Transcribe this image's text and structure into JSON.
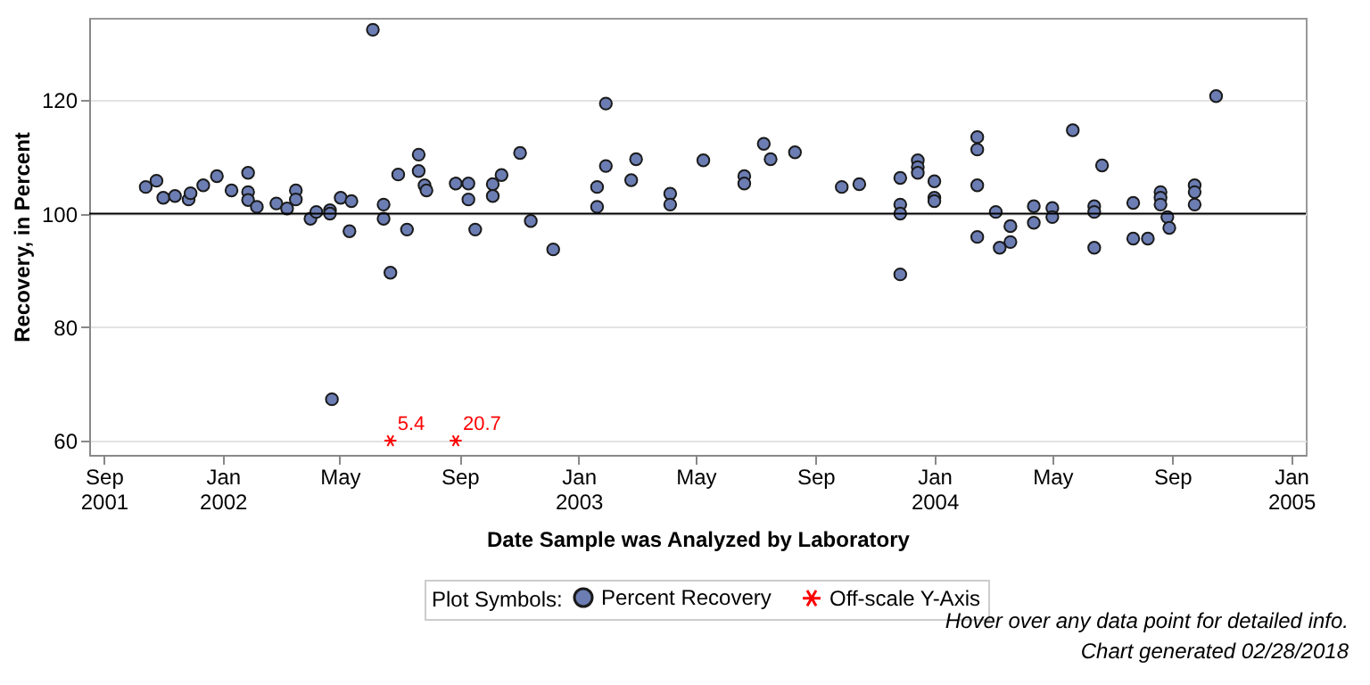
{
  "chart_data": {
    "type": "scatter",
    "xlabel": "Date Sample was Analyzed by Laboratory",
    "ylabel": "Recovery, in Percent",
    "legend_title": "Plot Symbols:",
    "legend": "bottom",
    "grid": "y",
    "xlim": [
      "2001-08-17",
      "2005-01-16"
    ],
    "ylim": [
      57.5,
      134.5
    ],
    "yticks": [
      60,
      80,
      100,
      120
    ],
    "xticks": [
      {
        "value": "2001-09-01",
        "label": "Sep 2001"
      },
      {
        "value": "2002-01-01",
        "label": "Jan 2002"
      },
      {
        "value": "2002-05-01",
        "label": "May"
      },
      {
        "value": "2002-09-01",
        "label": "Sep"
      },
      {
        "value": "2003-01-01",
        "label": "Jan 2003"
      },
      {
        "value": "2003-05-01",
        "label": "May"
      },
      {
        "value": "2003-09-01",
        "label": "Sep"
      },
      {
        "value": "2004-01-01",
        "label": "Jan 2004"
      },
      {
        "value": "2004-05-01",
        "label": "May"
      },
      {
        "value": "2004-09-01",
        "label": "Sep"
      },
      {
        "value": "2005-01-01",
        "label": "Jan 2005"
      }
    ],
    "ref_lines": [
      {
        "axis": "y",
        "value": 100,
        "color": "#000000"
      }
    ],
    "annotations": [
      "Hover over any data point for detailed info.",
      "Chart generated 02/28/2018",
      {
        "text": "5.4",
        "x": "2002-06-22",
        "y": 60
      },
      {
        "text": "20.7",
        "x": "2002-08-28",
        "y": 60
      }
    ],
    "series": [
      {
        "name": "Percent Recovery",
        "color": "#6b7db3",
        "marker": "circle",
        "x": [
          "2001-10-14",
          "2001-10-25",
          "2001-11-01",
          "2001-11-13",
          "2001-11-27",
          "2001-11-29",
          "2001-12-12",
          "2001-12-26",
          "2002-01-10",
          "2002-01-27",
          "2002-01-27",
          "2002-01-27",
          "2002-02-05",
          "2002-02-25",
          "2002-03-08",
          "2002-03-17",
          "2002-03-17",
          "2002-04-01",
          "2002-04-07",
          "2002-04-21",
          "2002-04-21",
          "2002-04-23",
          "2002-05-02",
          "2002-05-11",
          "2002-05-13",
          "2002-06-04",
          "2002-06-15",
          "2002-06-15",
          "2002-06-22",
          "2002-06-30",
          "2002-07-09",
          "2002-07-21",
          "2002-07-21",
          "2002-07-27",
          "2002-07-29",
          "2002-08-28",
          "2002-09-10",
          "2002-09-10",
          "2002-09-17",
          "2002-10-05",
          "2002-10-05",
          "2002-10-14",
          "2002-11-02",
          "2002-11-13",
          "2002-12-06",
          "2003-01-20",
          "2003-01-20",
          "2003-01-29",
          "2003-01-29",
          "2003-02-24",
          "2003-03-01",
          "2003-04-05",
          "2003-04-05",
          "2003-05-09",
          "2003-06-20",
          "2003-06-20",
          "2003-07-10",
          "2003-07-17",
          "2003-08-11",
          "2003-09-28",
          "2003-10-16",
          "2003-11-27",
          "2003-11-27",
          "2003-11-27",
          "2003-11-27",
          "2003-12-15",
          "2003-12-15",
          "2003-12-15",
          "2004-01-01",
          "2004-01-01",
          "2004-01-01",
          "2004-02-14",
          "2004-02-14",
          "2004-02-14",
          "2004-02-14",
          "2004-03-04",
          "2004-03-08",
          "2004-03-19",
          "2004-03-19",
          "2004-04-12",
          "2004-04-12",
          "2004-05-01",
          "2004-05-01",
          "2004-05-22",
          "2004-06-13",
          "2004-06-13",
          "2004-06-21",
          "2004-06-13",
          "2004-07-23",
          "2004-07-23",
          "2004-08-07",
          "2004-08-20",
          "2004-08-20",
          "2004-08-20",
          "2004-08-27",
          "2004-08-29",
          "2004-09-24",
          "2004-09-24",
          "2004-09-24",
          "2004-10-16"
        ],
        "values": [
          104.7,
          105.8,
          102.8,
          103.1,
          102.5,
          103.6,
          105.0,
          106.6,
          104.1,
          107.2,
          103.8,
          102.4,
          101.2,
          101.8,
          100.9,
          104.1,
          102.5,
          99.1,
          100.3,
          100.6,
          100.0,
          67.3,
          102.8,
          96.9,
          102.2,
          132.4,
          101.6,
          99.1,
          89.6,
          106.9,
          97.2,
          110.4,
          107.5,
          105.0,
          104.1,
          105.3,
          105.3,
          102.5,
          97.2,
          105.2,
          103.1,
          106.8,
          110.7,
          98.7,
          93.7,
          104.7,
          101.2,
          119.4,
          108.4,
          105.9,
          109.6,
          103.5,
          101.6,
          109.4,
          106.6,
          105.3,
          112.3,
          109.6,
          110.8,
          104.7,
          105.2,
          106.3,
          101.6,
          100.0,
          89.3,
          109.4,
          108.2,
          107.2,
          105.7,
          102.8,
          102.2,
          113.5,
          111.3,
          105.0,
          95.9,
          100.3,
          94.0,
          95.0,
          97.8,
          101.3,
          98.4,
          101.0,
          99.4,
          114.7,
          101.3,
          100.3,
          108.5,
          94.0,
          101.9,
          95.6,
          95.6,
          103.8,
          102.8,
          101.6,
          99.4,
          97.5,
          105.0,
          103.8,
          101.6,
          120.7
        ]
      },
      {
        "name": "Off-scale Y-Axis",
        "color": "#ff0000",
        "marker": "cross",
        "x": [
          "2002-06-22",
          "2002-08-28"
        ],
        "values": [
          60,
          60
        ]
      }
    ]
  }
}
